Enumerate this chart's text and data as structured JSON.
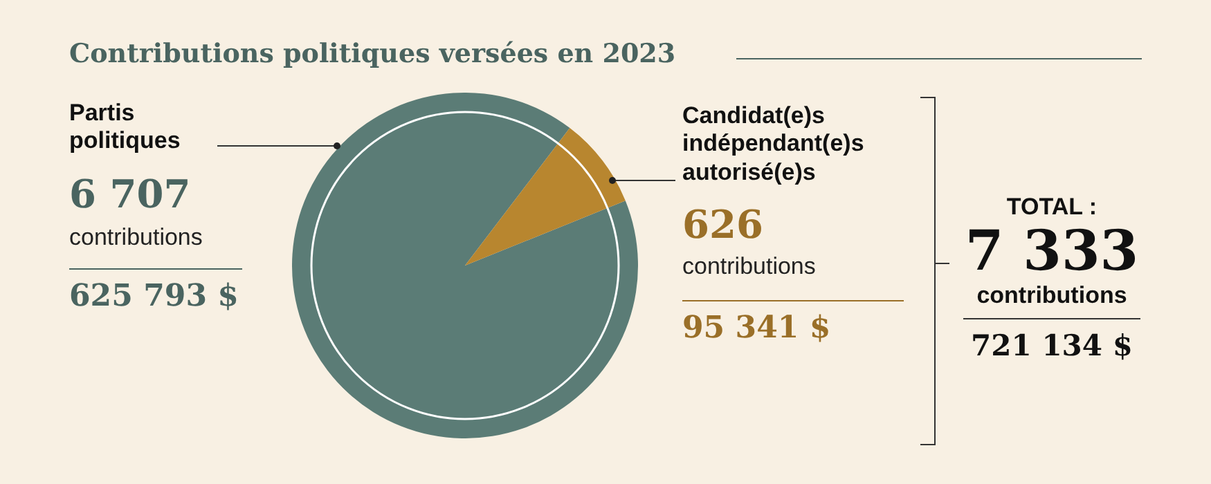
{
  "chart_data": {
    "type": "pie",
    "title": "Contributions politiques versées en 2023",
    "categories": [
      "Partis politiques",
      "Candidat(e)s indépendant(e)s autorisé(e)s"
    ],
    "values": [
      6707,
      626
    ],
    "value_labels": [
      "6 707",
      "626"
    ],
    "colors": [
      "#5b7c76",
      "#b8862f"
    ],
    "legend": false,
    "annotations": [
      "contributions",
      "625 793 $",
      "contributions",
      "95 341 $",
      "TOTAL :",
      "7 333",
      "contributions",
      "721 134 $"
    ]
  }
}
